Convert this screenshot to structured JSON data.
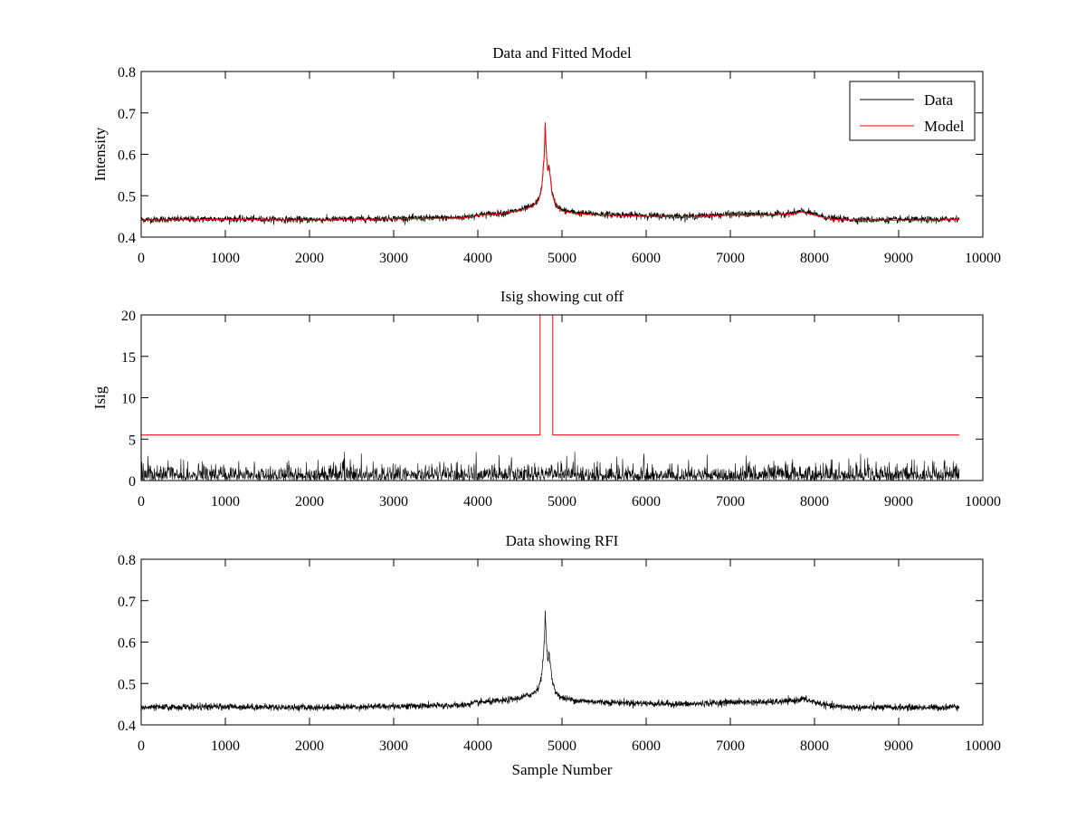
{
  "colors": {
    "data": "#000000",
    "model": "#ff0000",
    "axes": "#000000",
    "background": "#ffffff"
  },
  "chart_data": [
    {
      "type": "line",
      "title": "Data and Fitted Model",
      "xlabel": "",
      "ylabel": "Intensity",
      "xlim": [
        0,
        10000
      ],
      "ylim": [
        0.4,
        0.8
      ],
      "xticks": [
        "0",
        "1000",
        "2000",
        "3000",
        "4000",
        "5000",
        "6000",
        "7000",
        "8000",
        "9000",
        "10000"
      ],
      "yticks": [
        "0.4",
        "0.5",
        "0.6",
        "0.7",
        "0.8"
      ],
      "grid": false,
      "legend_position": "top-right",
      "legend": [
        "Data",
        "Model"
      ],
      "series": [
        {
          "name": "Data",
          "color": "#000000",
          "noise": 0.004,
          "x": [
            0,
            1000,
            2000,
            3000,
            3800,
            3950,
            4050,
            4300,
            4500,
            4650,
            4720,
            4760,
            4790,
            4800,
            4815,
            4830,
            4845,
            4860,
            4880,
            4920,
            5000,
            5200,
            5500,
            6000,
            6500,
            7000,
            7500,
            7750,
            7850,
            8000,
            8200,
            8500,
            9000,
            9500,
            9720
          ],
          "y": [
            0.442,
            0.444,
            0.442,
            0.445,
            0.447,
            0.452,
            0.455,
            0.458,
            0.465,
            0.475,
            0.49,
            0.52,
            0.6,
            0.672,
            0.6,
            0.56,
            0.575,
            0.55,
            0.51,
            0.48,
            0.465,
            0.458,
            0.455,
            0.452,
            0.45,
            0.455,
            0.455,
            0.458,
            0.463,
            0.455,
            0.445,
            0.442,
            0.442,
            0.442,
            0.445
          ]
        },
        {
          "name": "Model",
          "color": "#ff0000",
          "noise": 0,
          "x": [
            0,
            1000,
            2000,
            3000,
            3800,
            3950,
            4050,
            4300,
            4500,
            4650,
            4720,
            4760,
            4790,
            4800,
            4815,
            4830,
            4845,
            4860,
            4880,
            4920,
            5000,
            5200,
            5500,
            6000,
            6500,
            7000,
            7500,
            7750,
            7850,
            8000,
            8200,
            8500,
            9000,
            9500,
            9720
          ],
          "y": [
            0.441,
            0.443,
            0.441,
            0.444,
            0.446,
            0.45,
            0.453,
            0.457,
            0.464,
            0.474,
            0.489,
            0.52,
            0.6,
            0.672,
            0.6,
            0.56,
            0.573,
            0.548,
            0.508,
            0.478,
            0.463,
            0.456,
            0.453,
            0.45,
            0.449,
            0.453,
            0.454,
            0.456,
            0.461,
            0.453,
            0.443,
            0.441,
            0.441,
            0.441,
            0.443
          ]
        }
      ]
    },
    {
      "type": "line",
      "title": "Isig showing cut off",
      "xlabel": "",
      "ylabel": "Isig",
      "xlim": [
        0,
        10000
      ],
      "ylim": [
        0,
        20
      ],
      "xticks": [
        "0",
        "1000",
        "2000",
        "3000",
        "4000",
        "5000",
        "6000",
        "7000",
        "8000",
        "9000",
        "10000"
      ],
      "yticks": [
        "0",
        "5",
        "10",
        "15",
        "20"
      ],
      "grid": false,
      "series": [
        {
          "color": "#000000",
          "kind": "noise",
          "x_range": [
            0,
            9720
          ],
          "typical_max": 2.2,
          "peak_max": 3.5
        },
        {
          "color": "#ff0000",
          "kind": "step",
          "x": [
            0,
            4740,
            4740,
            4890,
            4890,
            9720
          ],
          "y": [
            5.5,
            5.5,
            20,
            20,
            5.5,
            5.5
          ]
        }
      ]
    },
    {
      "type": "line",
      "title": "Data showing RFI",
      "xlabel": "Sample Number",
      "ylabel": "",
      "xlim": [
        0,
        10000
      ],
      "ylim": [
        0.4,
        0.8
      ],
      "xticks": [
        "0",
        "1000",
        "2000",
        "3000",
        "4000",
        "5000",
        "6000",
        "7000",
        "8000",
        "9000",
        "10000"
      ],
      "yticks": [
        "0.4",
        "0.5",
        "0.6",
        "0.7",
        "0.8"
      ],
      "grid": false,
      "series": [
        {
          "color": "#000000",
          "noise": 0.004,
          "x": [
            0,
            1000,
            2000,
            3000,
            3800,
            3950,
            4050,
            4300,
            4500,
            4650,
            4720,
            4760,
            4790,
            4800,
            4815,
            4830,
            4845,
            4860,
            4880,
            4920,
            5000,
            5200,
            5500,
            6000,
            6500,
            7000,
            7500,
            7750,
            7850,
            8000,
            8200,
            8500,
            9000,
            9500,
            9720
          ],
          "y": [
            0.442,
            0.444,
            0.442,
            0.445,
            0.447,
            0.452,
            0.455,
            0.458,
            0.465,
            0.475,
            0.49,
            0.52,
            0.6,
            0.672,
            0.6,
            0.56,
            0.575,
            0.55,
            0.51,
            0.48,
            0.465,
            0.458,
            0.455,
            0.452,
            0.45,
            0.455,
            0.455,
            0.458,
            0.463,
            0.455,
            0.445,
            0.442,
            0.442,
            0.442,
            0.445
          ]
        }
      ]
    }
  ]
}
